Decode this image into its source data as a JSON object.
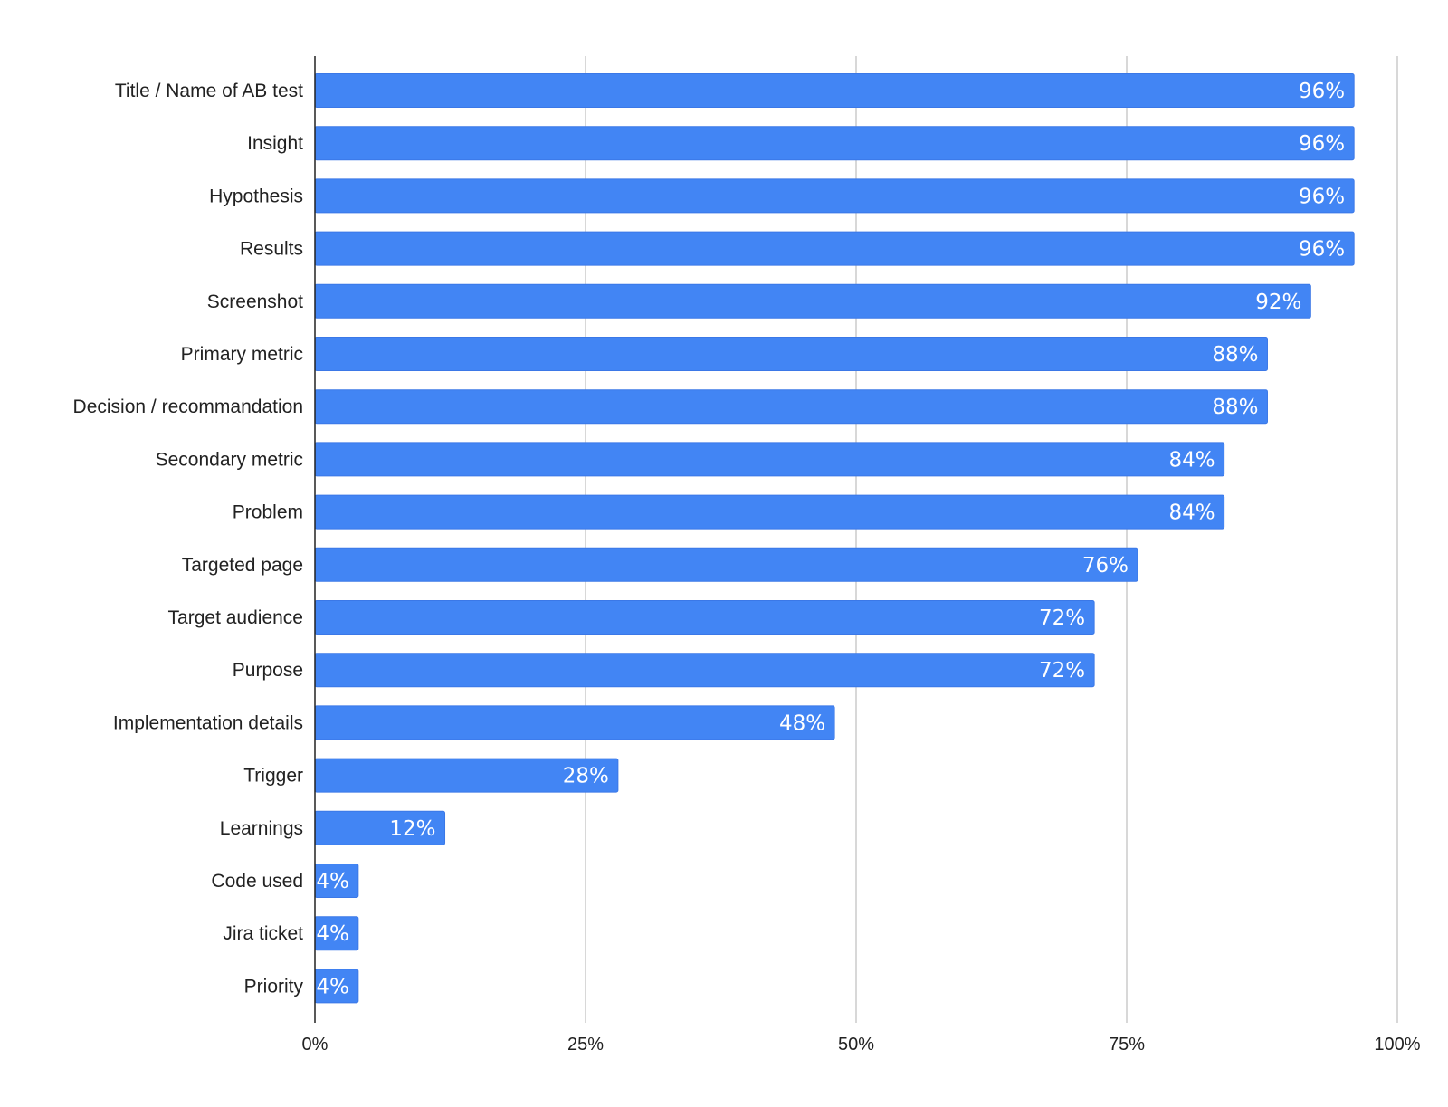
{
  "chart_data": {
    "type": "bar",
    "orientation": "horizontal",
    "categories": [
      "Title / Name of AB test",
      "Insight",
      "Hypothesis",
      "Results",
      "Screenshot",
      "Primary metric",
      "Decision / recommandation",
      "Secondary metric",
      "Problem",
      "Targeted page",
      "Target audience",
      "Purpose",
      "Implementation details",
      "Trigger",
      "Learnings",
      "Code used",
      "Jira ticket",
      "Priority"
    ],
    "values": [
      96,
      96,
      96,
      96,
      92,
      88,
      88,
      84,
      84,
      76,
      72,
      72,
      48,
      28,
      12,
      4,
      4,
      4
    ],
    "data_labels": [
      "96%",
      "96%",
      "96%",
      "96%",
      "92%",
      "88%",
      "88%",
      "84%",
      "84%",
      "76%",
      "72%",
      "72%",
      "48%",
      "28%",
      "12%",
      "4%",
      "4%",
      "4%"
    ],
    "x_ticks": [
      0,
      25,
      50,
      75,
      100
    ],
    "x_tick_labels": [
      "0%",
      "25%",
      "50%",
      "75%",
      "100%"
    ],
    "xlim": [
      0,
      100
    ],
    "title": "",
    "xlabel": "",
    "ylabel": "",
    "grid": "vertical",
    "legend": "none",
    "colors": {
      "bar": "#4285f4",
      "bar_border": "#3b78e7",
      "grid": "#cccccc",
      "axis": "#222222",
      "text": "#222222",
      "data_label": "#ffffff"
    }
  }
}
